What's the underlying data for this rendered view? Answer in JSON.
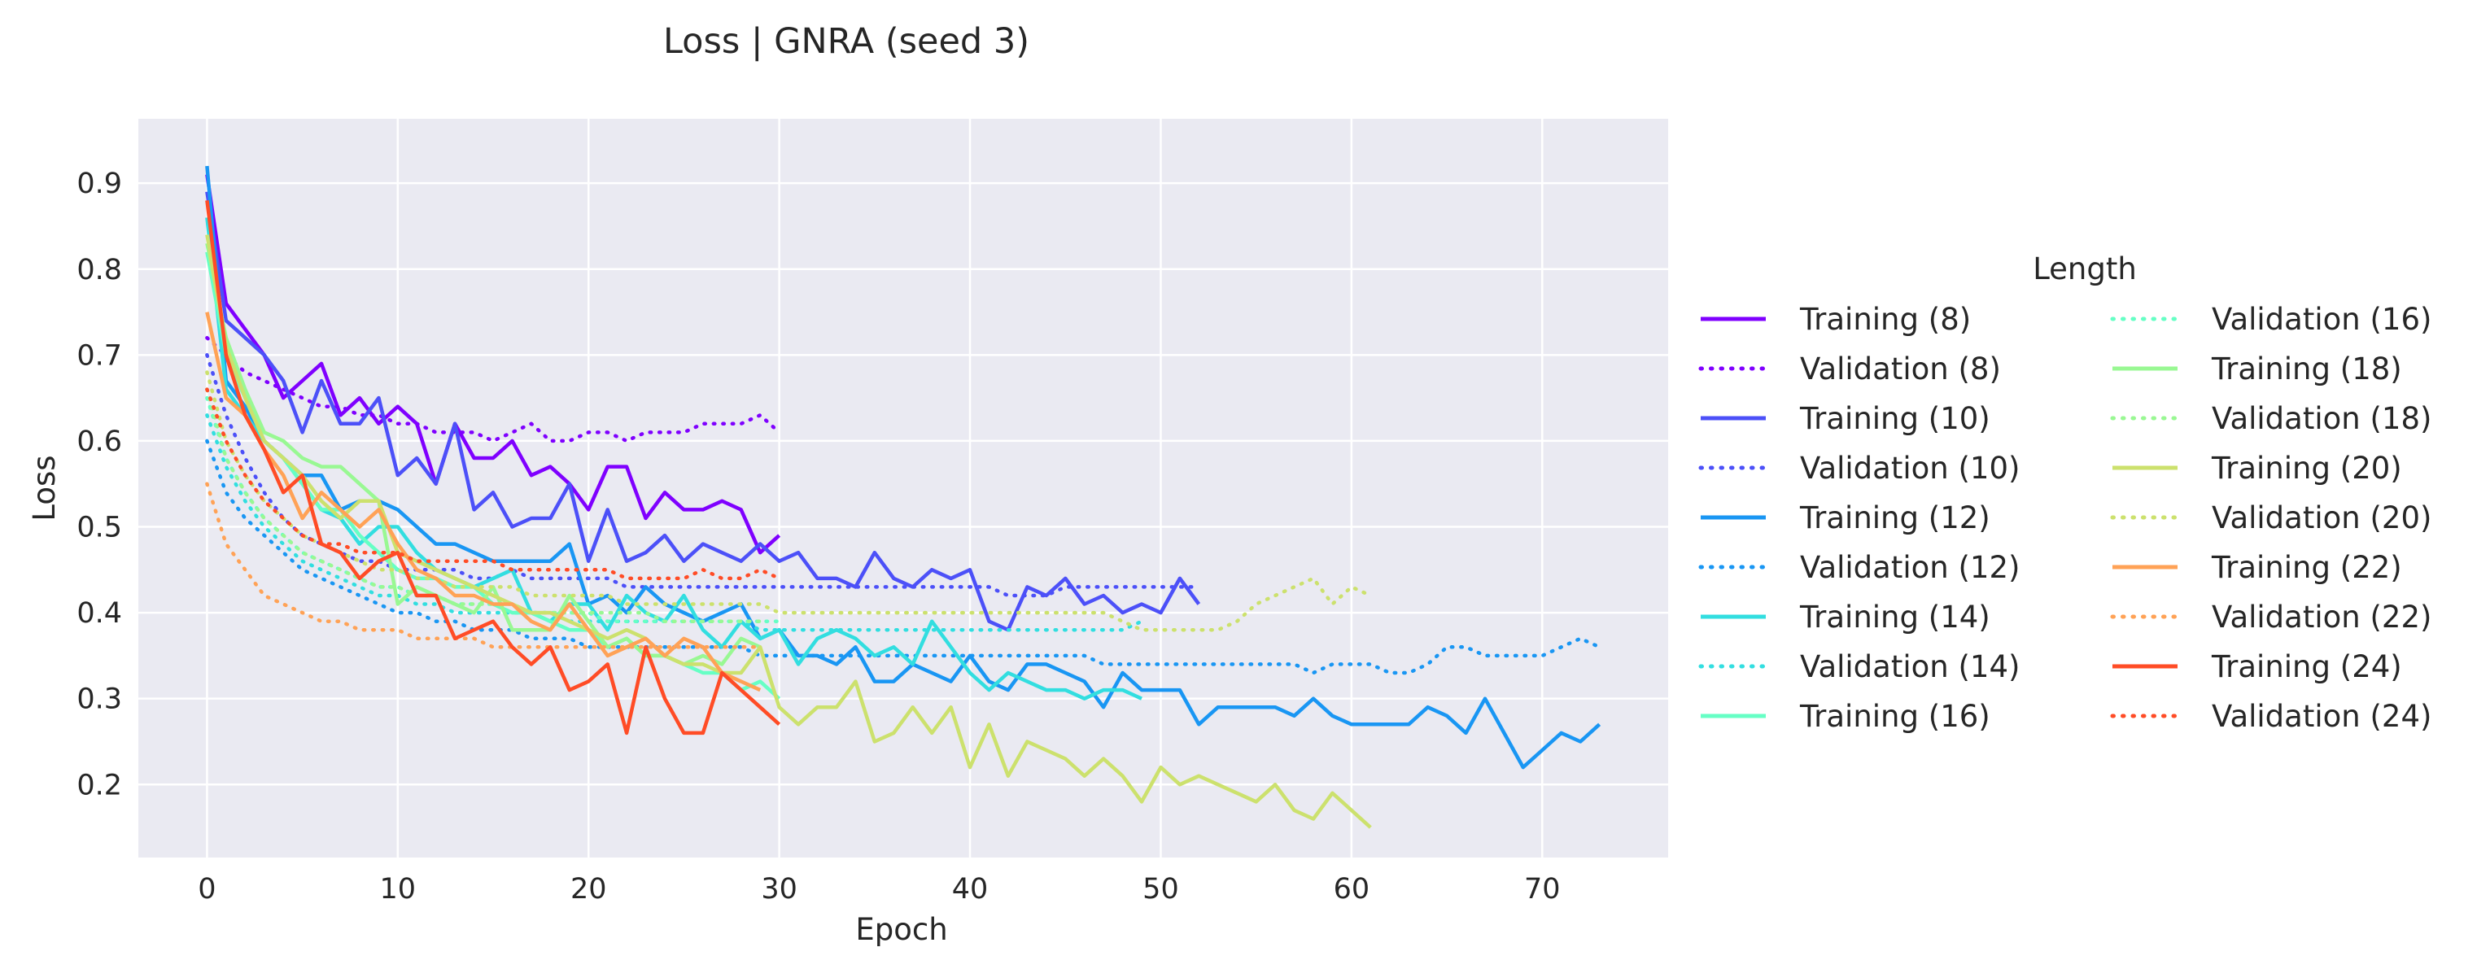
{
  "chart_data": {
    "type": "line",
    "title": "Loss | GNRA (seed 3)",
    "xlabel": "Epoch",
    "ylabel": "Loss",
    "xlim": [
      -3.6,
      76.6
    ],
    "ylim": [
      0.115,
      0.975
    ],
    "xticks": [
      0,
      10,
      20,
      30,
      40,
      50,
      60,
      70
    ],
    "yticks": [
      0.2,
      0.3,
      0.4,
      0.5,
      0.6,
      0.7,
      0.8,
      0.9
    ],
    "grid": true,
    "background": "#eaeaf2",
    "legend": {
      "title": "Length",
      "placement": "right",
      "columns": 2
    },
    "series": [
      {
        "name": "Training (8)",
        "color": "#7f00ff",
        "style": "solid",
        "values": [
          0.91,
          0.76,
          0.73,
          0.7,
          0.65,
          0.67,
          0.69,
          0.63,
          0.65,
          0.62,
          0.64,
          0.62,
          0.55,
          0.62,
          0.58,
          0.58,
          0.6,
          0.56,
          0.57,
          0.55,
          0.52,
          0.57,
          0.57,
          0.51,
          0.54,
          0.52,
          0.52,
          0.53,
          0.52,
          0.47,
          0.49
        ]
      },
      {
        "name": "Validation (8)",
        "color": "#7f00ff",
        "style": "dotted",
        "values": [
          0.72,
          0.7,
          0.68,
          0.67,
          0.66,
          0.65,
          0.64,
          0.64,
          0.63,
          0.63,
          0.62,
          0.62,
          0.61,
          0.61,
          0.61,
          0.6,
          0.61,
          0.62,
          0.6,
          0.6,
          0.61,
          0.61,
          0.6,
          0.61,
          0.61,
          0.61,
          0.62,
          0.62,
          0.62,
          0.63,
          0.61
        ]
      },
      {
        "name": "Training (10)",
        "color": "#4c50f8",
        "style": "solid",
        "values": [
          0.89,
          0.74,
          0.72,
          0.7,
          0.67,
          0.61,
          0.67,
          0.62,
          0.62,
          0.65,
          0.56,
          0.58,
          0.55,
          0.62,
          0.52,
          0.54,
          0.5,
          0.51,
          0.51,
          0.55,
          0.46,
          0.52,
          0.46,
          0.47,
          0.49,
          0.46,
          0.48,
          0.47,
          0.46,
          0.48,
          0.46,
          0.47,
          0.44,
          0.44,
          0.43,
          0.47,
          0.44,
          0.43,
          0.45,
          0.44,
          0.45,
          0.39,
          0.38,
          0.43,
          0.42,
          0.44,
          0.41,
          0.42,
          0.4,
          0.41,
          0.4,
          0.44,
          0.41
        ]
      },
      {
        "name": "Validation (10)",
        "color": "#4c50f8",
        "style": "dotted",
        "values": [
          0.7,
          0.63,
          0.58,
          0.54,
          0.51,
          0.49,
          0.48,
          0.47,
          0.46,
          0.46,
          0.45,
          0.45,
          0.45,
          0.45,
          0.44,
          0.44,
          0.45,
          0.44,
          0.44,
          0.44,
          0.44,
          0.44,
          0.43,
          0.43,
          0.43,
          0.43,
          0.43,
          0.43,
          0.43,
          0.43,
          0.43,
          0.43,
          0.43,
          0.43,
          0.43,
          0.43,
          0.43,
          0.43,
          0.43,
          0.43,
          0.43,
          0.43,
          0.42,
          0.42,
          0.42,
          0.43,
          0.43,
          0.43,
          0.43,
          0.43,
          0.43,
          0.43,
          0.43
        ]
      },
      {
        "name": "Training (12)",
        "color": "#1996f3",
        "style": "solid",
        "values": [
          0.92,
          0.67,
          0.64,
          0.6,
          0.58,
          0.56,
          0.56,
          0.52,
          0.53,
          0.53,
          0.52,
          0.5,
          0.48,
          0.48,
          0.47,
          0.46,
          0.46,
          0.46,
          0.46,
          0.48,
          0.41,
          0.42,
          0.4,
          0.43,
          0.41,
          0.4,
          0.39,
          0.4,
          0.41,
          0.37,
          0.38,
          0.35,
          0.35,
          0.34,
          0.36,
          0.32,
          0.32,
          0.34,
          0.33,
          0.32,
          0.35,
          0.32,
          0.31,
          0.34,
          0.34,
          0.33,
          0.32,
          0.29,
          0.33,
          0.31,
          0.31,
          0.31,
          0.27,
          0.29,
          0.29,
          0.29,
          0.29,
          0.28,
          0.3,
          0.28,
          0.27,
          0.27,
          0.27,
          0.27,
          0.29,
          0.28,
          0.26,
          0.3,
          0.26,
          0.22,
          0.24,
          0.26,
          0.25,
          0.27
        ]
      },
      {
        "name": "Validation (12)",
        "color": "#1996f3",
        "style": "dotted",
        "values": [
          0.6,
          0.54,
          0.51,
          0.49,
          0.47,
          0.45,
          0.44,
          0.43,
          0.42,
          0.41,
          0.4,
          0.4,
          0.39,
          0.39,
          0.38,
          0.38,
          0.38,
          0.37,
          0.37,
          0.37,
          0.36,
          0.36,
          0.36,
          0.36,
          0.36,
          0.36,
          0.36,
          0.36,
          0.36,
          0.35,
          0.35,
          0.35,
          0.35,
          0.35,
          0.35,
          0.35,
          0.35,
          0.35,
          0.35,
          0.35,
          0.35,
          0.35,
          0.35,
          0.35,
          0.35,
          0.35,
          0.35,
          0.34,
          0.34,
          0.34,
          0.34,
          0.34,
          0.34,
          0.34,
          0.34,
          0.34,
          0.34,
          0.34,
          0.33,
          0.34,
          0.34,
          0.34,
          0.33,
          0.33,
          0.34,
          0.36,
          0.36,
          0.35,
          0.35,
          0.35,
          0.35,
          0.36,
          0.37,
          0.36
        ]
      },
      {
        "name": "Training (14)",
        "color": "#32dee0",
        "style": "solid",
        "values": [
          0.86,
          0.66,
          0.63,
          0.6,
          0.58,
          0.55,
          0.52,
          0.51,
          0.48,
          0.5,
          0.5,
          0.47,
          0.45,
          0.44,
          0.43,
          0.44,
          0.45,
          0.4,
          0.39,
          0.41,
          0.41,
          0.38,
          0.42,
          0.4,
          0.39,
          0.42,
          0.38,
          0.36,
          0.39,
          0.37,
          0.38,
          0.34,
          0.37,
          0.38,
          0.37,
          0.35,
          0.36,
          0.34,
          0.39,
          0.36,
          0.33,
          0.31,
          0.33,
          0.32,
          0.31,
          0.31,
          0.3,
          0.31,
          0.31,
          0.3
        ]
      },
      {
        "name": "Validation (14)",
        "color": "#32dee0",
        "style": "dotted",
        "values": [
          0.63,
          0.57,
          0.53,
          0.5,
          0.48,
          0.46,
          0.45,
          0.44,
          0.43,
          0.42,
          0.42,
          0.41,
          0.41,
          0.4,
          0.4,
          0.4,
          0.4,
          0.4,
          0.4,
          0.39,
          0.39,
          0.39,
          0.39,
          0.39,
          0.39,
          0.39,
          0.39,
          0.39,
          0.39,
          0.38,
          0.38,
          0.38,
          0.38,
          0.38,
          0.38,
          0.38,
          0.38,
          0.38,
          0.38,
          0.38,
          0.38,
          0.38,
          0.38,
          0.38,
          0.38,
          0.38,
          0.38,
          0.38,
          0.38,
          0.39
        ]
      },
      {
        "name": "Training (16)",
        "color": "#66ffc5",
        "style": "solid",
        "values": [
          0.82,
          0.7,
          0.65,
          0.6,
          0.58,
          0.55,
          0.52,
          0.52,
          0.49,
          0.47,
          0.45,
          0.44,
          0.44,
          0.43,
          0.43,
          0.41,
          0.4,
          0.4,
          0.39,
          0.38,
          0.38,
          0.36,
          0.37,
          0.35,
          0.35,
          0.34,
          0.33,
          0.33,
          0.31,
          0.32,
          0.3
        ]
      },
      {
        "name": "Validation (16)",
        "color": "#66ffc5",
        "style": "dotted",
        "values": [
          0.65,
          0.58,
          0.54,
          0.51,
          0.49,
          0.47,
          0.46,
          0.45,
          0.44,
          0.43,
          0.43,
          0.42,
          0.42,
          0.41,
          0.41,
          0.41,
          0.4,
          0.4,
          0.4,
          0.4,
          0.4,
          0.39,
          0.39,
          0.39,
          0.39,
          0.39,
          0.39,
          0.39,
          0.39,
          0.39,
          0.39
        ]
      },
      {
        "name": "Training (18)",
        "color": "#99f893",
        "style": "solid",
        "values": [
          0.83,
          0.72,
          0.66,
          0.61,
          0.6,
          0.58,
          0.57,
          0.57,
          0.55,
          0.53,
          0.41,
          0.43,
          0.42,
          0.41,
          0.4,
          0.43,
          0.38,
          0.38,
          0.38,
          0.42,
          0.39,
          0.36,
          0.37,
          0.35,
          0.35,
          0.34,
          0.35,
          0.34,
          0.37,
          0.36
        ]
      },
      {
        "name": "Validation (18)",
        "color": "#99f893",
        "style": "dotted",
        "values": [
          0.66,
          0.58,
          0.54,
          0.51,
          0.49,
          0.47,
          0.46,
          0.45,
          0.44,
          0.43,
          0.43,
          0.42,
          0.42,
          0.41,
          0.41,
          0.41,
          0.41,
          0.4,
          0.4,
          0.4,
          0.4,
          0.4,
          0.4,
          0.4,
          0.39,
          0.39,
          0.39,
          0.39,
          0.39,
          0.39
        ]
      },
      {
        "name": "Training (20)",
        "color": "#cce16d",
        "style": "solid",
        "values": [
          0.84,
          0.71,
          0.65,
          0.6,
          0.58,
          0.56,
          0.53,
          0.51,
          0.53,
          0.53,
          0.47,
          0.46,
          0.45,
          0.44,
          0.43,
          0.42,
          0.41,
          0.4,
          0.4,
          0.39,
          0.38,
          0.37,
          0.38,
          0.37,
          0.35,
          0.34,
          0.34,
          0.33,
          0.33,
          0.36,
          0.29,
          0.27,
          0.29,
          0.29,
          0.32,
          0.25,
          0.26,
          0.29,
          0.26,
          0.29,
          0.22,
          0.27,
          0.21,
          0.25,
          0.24,
          0.23,
          0.21,
          0.23,
          0.21,
          0.18,
          0.22,
          0.2,
          0.21,
          0.2,
          0.19,
          0.18,
          0.2,
          0.17,
          0.16,
          0.19,
          0.17,
          0.15
        ]
      },
      {
        "name": "Validation (20)",
        "color": "#cce16d",
        "style": "dotted",
        "values": [
          0.68,
          0.6,
          0.56,
          0.53,
          0.51,
          0.49,
          0.48,
          0.47,
          0.46,
          0.45,
          0.45,
          0.44,
          0.44,
          0.43,
          0.43,
          0.43,
          0.43,
          0.42,
          0.42,
          0.42,
          0.42,
          0.42,
          0.41,
          0.41,
          0.41,
          0.41,
          0.41,
          0.41,
          0.41,
          0.41,
          0.4,
          0.4,
          0.4,
          0.4,
          0.4,
          0.4,
          0.4,
          0.4,
          0.4,
          0.4,
          0.4,
          0.4,
          0.4,
          0.4,
          0.4,
          0.4,
          0.4,
          0.4,
          0.39,
          0.38,
          0.38,
          0.38,
          0.38,
          0.38,
          0.39,
          0.41,
          0.42,
          0.43,
          0.44,
          0.41,
          0.43,
          0.42
        ]
      },
      {
        "name": "Training (22)",
        "color": "#ffa256",
        "style": "solid",
        "values": [
          0.75,
          0.65,
          0.63,
          0.59,
          0.56,
          0.51,
          0.54,
          0.52,
          0.5,
          0.52,
          0.48,
          0.45,
          0.44,
          0.42,
          0.42,
          0.41,
          0.41,
          0.39,
          0.38,
          0.41,
          0.38,
          0.35,
          0.36,
          0.37,
          0.35,
          0.37,
          0.36,
          0.33,
          0.32,
          0.31
        ]
      },
      {
        "name": "Validation (22)",
        "color": "#ffa256",
        "style": "dotted",
        "values": [
          0.55,
          0.48,
          0.45,
          0.42,
          0.41,
          0.4,
          0.39,
          0.39,
          0.38,
          0.38,
          0.38,
          0.37,
          0.37,
          0.37,
          0.37,
          0.36,
          0.36,
          0.36,
          0.36,
          0.36,
          0.36,
          0.36,
          0.36,
          0.36,
          0.36,
          0.36,
          0.36,
          0.36,
          0.36,
          0.36
        ]
      },
      {
        "name": "Training (24)",
        "color": "#ff4c26",
        "style": "solid",
        "values": [
          0.88,
          0.7,
          0.63,
          0.59,
          0.54,
          0.56,
          0.48,
          0.47,
          0.44,
          0.46,
          0.47,
          0.42,
          0.42,
          0.37,
          0.38,
          0.39,
          0.36,
          0.34,
          0.36,
          0.31,
          0.32,
          0.34,
          0.26,
          0.36,
          0.3,
          0.26,
          0.26,
          0.33,
          0.31,
          0.29,
          0.27
        ]
      },
      {
        "name": "Validation (24)",
        "color": "#ff4c26",
        "style": "dotted",
        "values": [
          0.66,
          0.6,
          0.56,
          0.53,
          0.51,
          0.49,
          0.48,
          0.48,
          0.47,
          0.47,
          0.47,
          0.46,
          0.46,
          0.46,
          0.46,
          0.46,
          0.45,
          0.45,
          0.45,
          0.45,
          0.45,
          0.45,
          0.44,
          0.44,
          0.44,
          0.44,
          0.45,
          0.44,
          0.44,
          0.45,
          0.44
        ]
      }
    ]
  }
}
